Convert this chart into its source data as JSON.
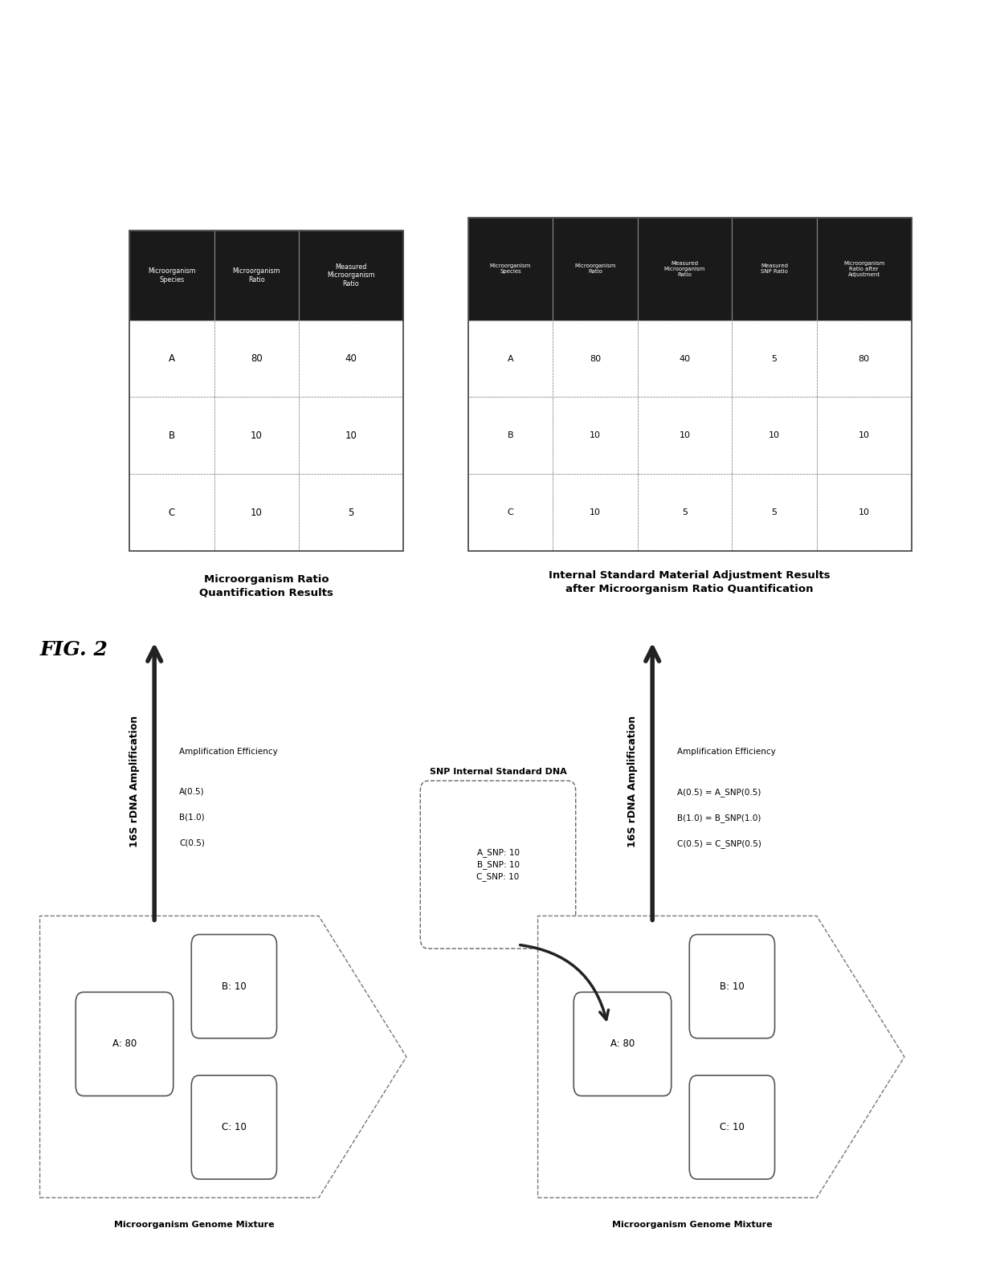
{
  "fig_label": "FIG. 2",
  "background_color": "#ffffff",
  "table1_headers": [
    "Microorganism\nSpecies",
    "Microorganism\nRatio",
    "Measured\nMicroorganism\nRatio"
  ],
  "table1_rows": [
    [
      "A",
      "80",
      "40"
    ],
    [
      "B",
      "10",
      "10"
    ],
    [
      "C",
      "10",
      "5"
    ]
  ],
  "table1_title": "Microorganism Ratio\nQuantification Results",
  "table2_headers": [
    "Microorganism\nSpecies",
    "Microorganism\nRatio",
    "Measured\nMicroorganism\nRatio",
    "Measured\nSNP Ratio",
    "Microorganism\nRatio after\nAdjustment"
  ],
  "table2_rows": [
    [
      "A",
      "80",
      "40",
      "5",
      "80"
    ],
    [
      "B",
      "10",
      "10",
      "10",
      "10"
    ],
    [
      "C",
      "10",
      "5",
      "5",
      "10"
    ]
  ],
  "table2_title": "Internal Standard Material Adjustment Results\nafter Microorganism Ratio Quantification",
  "arrow1_label": "16S rDNA Amplification",
  "amp_eff1_line1": "Amplification Efficiency",
  "amp_eff1_line2": "A(0.5)",
  "amp_eff1_line3": "B(1.0)",
  "amp_eff1_line4": "C(0.5)",
  "arrow2_label": "16S rDNA Amplification",
  "amp_eff2_line1": "Amplification Efficiency",
  "amp_eff2_line2": "A(0.5) = A_SNP(0.5)",
  "amp_eff2_line3": "B(1.0) = B_SNP(1.0)",
  "amp_eff2_line4": "C(0.5) = C_SNP(0.5)",
  "mixture_label": "Microorganism Genome Mixture",
  "snp_label": "SNP Internal Standard DNA",
  "snp_contents": "A_SNP: 10\nB_SNP: 10\nC_SNP: 10",
  "box_A1": "A: 80",
  "box_B1": "B: 10",
  "box_C1": "C: 10",
  "box_A2": "A: 80",
  "box_B2": "B: 10",
  "box_C2": "C: 10",
  "header_bg": "#1a1a1a",
  "header_fg": "#ffffff",
  "cell_border": "#888888"
}
